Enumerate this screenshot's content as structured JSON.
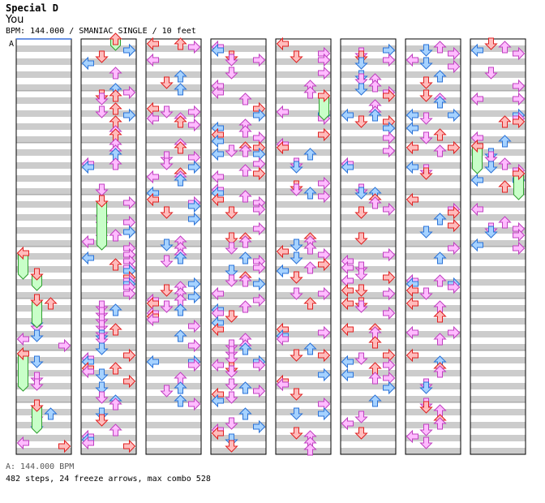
{
  "song": {
    "title": "Special D",
    "artist": "You",
    "info_line": "BPM: 144.000 / SMANIAC SINGLE / 10 feet"
  },
  "column_marker": "A",
  "footer": {
    "bpm_line": "A: 144.000 BPM",
    "stats_line": "482 steps, 24 freeze arrows, max combo 528"
  },
  "colors": {
    "band_light": "#ffffff",
    "band_dark": "#cccccc",
    "border": "#000000",
    "arrow_red": "#ffbcbc",
    "arrow_red_stroke": "#e02020",
    "arrow_blue": "#a6d2ff",
    "arrow_blue_stroke": "#2b73d8",
    "arrow_pink": "#ffbcff",
    "arrow_pink_stroke": "#c040c0",
    "freeze_fill": "#c8ffc8",
    "freeze_stroke": "#30a030",
    "marker_line": "#3a6fd8"
  },
  "chart_data": {
    "type": "step-chart",
    "columns": 8,
    "measures_per_column": 8,
    "steps_per_measure": 16,
    "total_steps": 482,
    "freeze_arrows": 24,
    "max_combo": 528,
    "seed_note": "Arrow layout sampled from the screenshot; individual positions are decorative."
  }
}
